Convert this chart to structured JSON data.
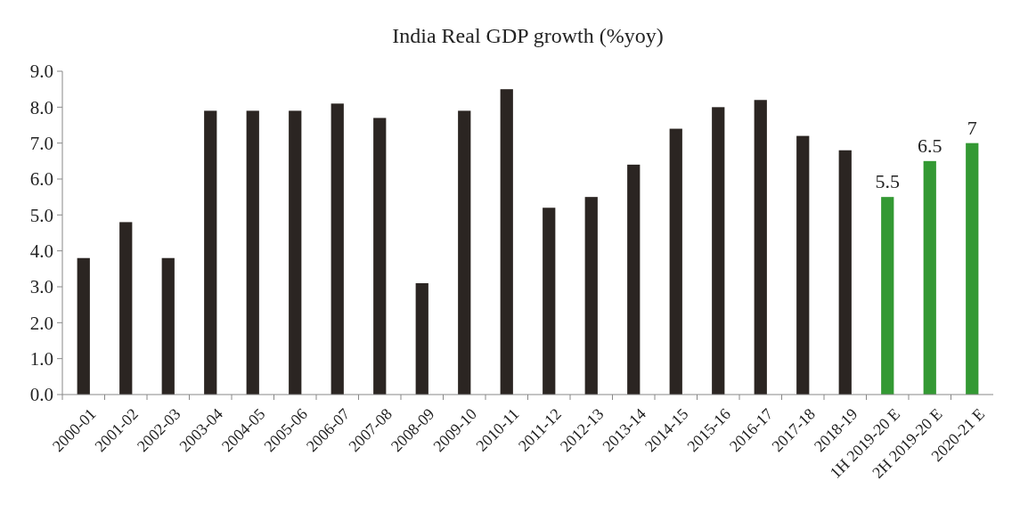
{
  "chart_data": {
    "type": "bar",
    "title": "India Real GDP growth (%yoy)",
    "categories": [
      "2000-01",
      "2001-02",
      "2002-03",
      "2003-04",
      "2004-05",
      "2005-06",
      "2006-07",
      "2007-08",
      "2008-09",
      "2009-10",
      "2010-11",
      "2011-12",
      "2012-13",
      "2013-14",
      "2014-15",
      "2015-16",
      "2016-17",
      "2017-18",
      "2018-19",
      "1H 2019-20 E",
      "2H 2019-20 E",
      "2020-21 E"
    ],
    "values": [
      3.8,
      4.8,
      3.8,
      7.9,
      7.9,
      7.9,
      8.1,
      7.7,
      3.1,
      7.9,
      8.5,
      5.2,
      5.5,
      6.4,
      7.4,
      8.0,
      8.2,
      7.2,
      6.8,
      5.5,
      6.5,
      7
    ],
    "colors": [
      "#2b2522",
      "#2b2522",
      "#2b2522",
      "#2b2522",
      "#2b2522",
      "#2b2522",
      "#2b2522",
      "#2b2522",
      "#2b2522",
      "#2b2522",
      "#2b2522",
      "#2b2522",
      "#2b2522",
      "#2b2522",
      "#2b2522",
      "#2b2522",
      "#2b2522",
      "#2b2522",
      "#2b2522",
      "#339933",
      "#339933",
      "#339933"
    ],
    "value_labels": [
      null,
      null,
      null,
      null,
      null,
      null,
      null,
      null,
      null,
      null,
      null,
      null,
      null,
      null,
      null,
      null,
      null,
      null,
      null,
      "5.5",
      "6.5",
      "7"
    ],
    "ylim": [
      0,
      9
    ],
    "yticks": [
      {
        "value": 0,
        "label": "0.0"
      },
      {
        "value": 1,
        "label": "1.0"
      },
      {
        "value": 2,
        "label": "2.0"
      },
      {
        "value": 3,
        "label": "3.0"
      },
      {
        "value": 4,
        "label": "4.0"
      },
      {
        "value": 5,
        "label": "5.0"
      },
      {
        "value": 6,
        "label": "6.0"
      },
      {
        "value": 7,
        "label": "7.0"
      },
      {
        "value": 8,
        "label": "8.0"
      },
      {
        "value": 9,
        "label": "9.0"
      }
    ],
    "grid": false
  }
}
